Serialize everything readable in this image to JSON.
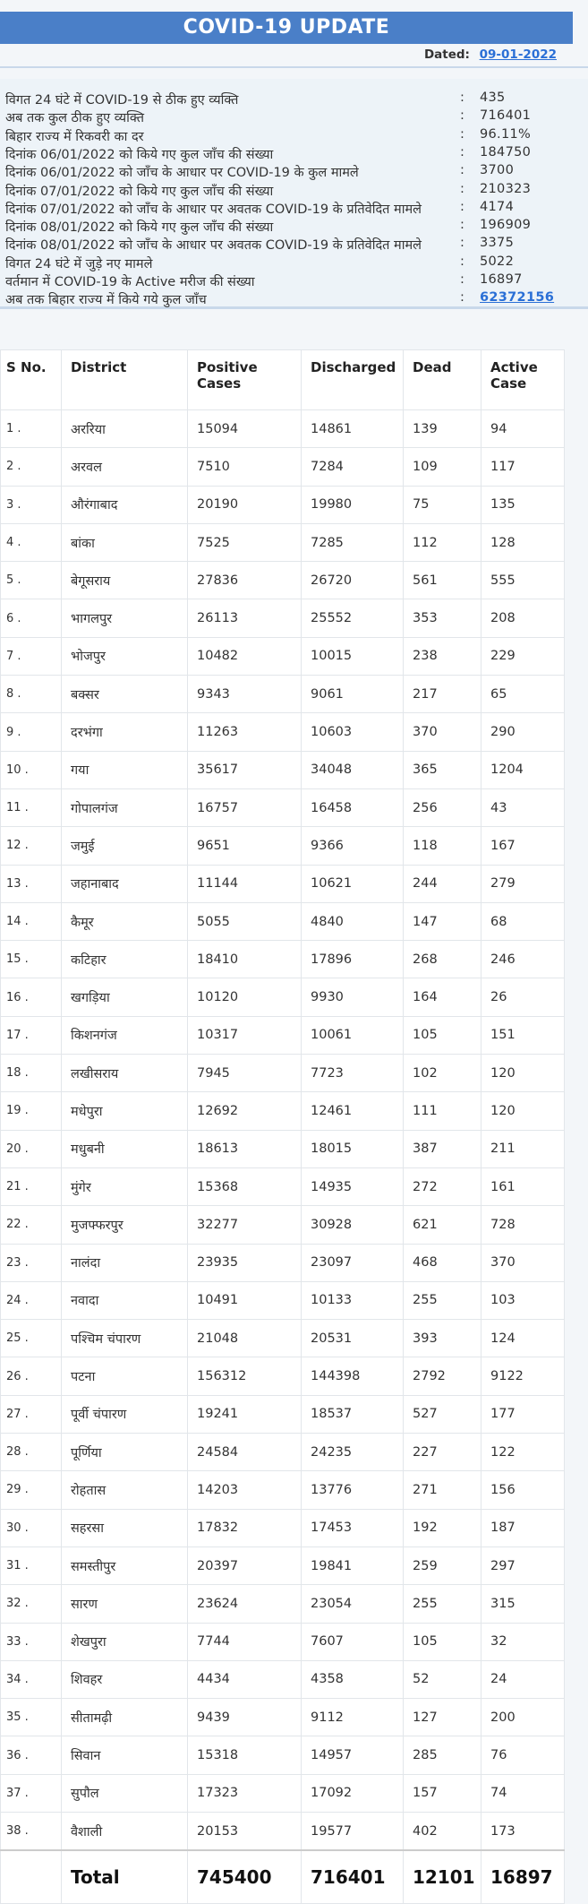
{
  "header": {
    "title": "COVID-19 UPDATE"
  },
  "dated": {
    "label": "Dated:",
    "value": "09-01-2022"
  },
  "summary": [
    {
      "label": "विगत 24 घंटे में COVID-19 से ठीक हुए व्यक्ति",
      "value": "435"
    },
    {
      "label": "अब तक कुल ठीक हुए व्यक्ति",
      "value": "716401"
    },
    {
      "label": "बिहार राज्य में रिकवरी का दर",
      "value": "96.11%"
    },
    {
      "label": "दिनांक 06/01/2022 को किये गए कुल जाँच की संख्या",
      "value": "184750"
    },
    {
      "label": "दिनांक 06/01/2022 को जाँच के आधार पर COVID-19 के कुल मामले",
      "value": "3700"
    },
    {
      "label": "दिनांक 07/01/2022 को किये गए कुल जाँच की संख्या",
      "value": "210323"
    },
    {
      "label": "दिनांक 07/01/2022 को जाँच के आधार पर अवतक COVID-19 के प्रतिवेदित मामले",
      "value": "4174"
    },
    {
      "label": "दिनांक 08/01/2022 को किये गए कुल जाँच की संख्या",
      "value": "196909"
    },
    {
      "label": "दिनांक 08/01/2022 को जाँच के आधार पर अवतक COVID-19 के प्रतिवेदित मामले",
      "value": "3375"
    },
    {
      "label": "विगत 24 घंटे में जुड़े नए मामले",
      "value": "5022"
    },
    {
      "label": "वर्तमान में COVID-19 के Active मरीज की संख्या",
      "value": "16897"
    },
    {
      "label": "अब तक बिहार राज्य में किये गये कुल जाँच",
      "value": "62372156",
      "link": true
    }
  ],
  "table": {
    "headers": [
      "S No.",
      "District",
      "Positive Cases",
      "Discharged",
      "Dead",
      "Active Case"
    ],
    "rows": [
      [
        "1 .",
        "अररिया",
        "15094",
        "14861",
        "139",
        "94"
      ],
      [
        "2 .",
        "अरवल",
        "7510",
        "7284",
        "109",
        "117"
      ],
      [
        "3 .",
        "औरंगाबाद",
        "20190",
        "19980",
        "75",
        "135"
      ],
      [
        "4 .",
        "बांका",
        "7525",
        "7285",
        "112",
        "128"
      ],
      [
        "5 .",
        "बेगूसराय",
        "27836",
        "26720",
        "561",
        "555"
      ],
      [
        "6 .",
        "भागलपुर",
        "26113",
        "25552",
        "353",
        "208"
      ],
      [
        "7 .",
        "भोजपुर",
        "10482",
        "10015",
        "238",
        "229"
      ],
      [
        "8 .",
        "बक्सर",
        "9343",
        "9061",
        "217",
        "65"
      ],
      [
        "9 .",
        "दरभंगा",
        "11263",
        "10603",
        "370",
        "290"
      ],
      [
        "10 .",
        "गया",
        "35617",
        "34048",
        "365",
        "1204"
      ],
      [
        "11 .",
        "गोपालगंज",
        "16757",
        "16458",
        "256",
        "43"
      ],
      [
        "12 .",
        "जमुई",
        "9651",
        "9366",
        "118",
        "167"
      ],
      [
        "13 .",
        "जहानाबाद",
        "11144",
        "10621",
        "244",
        "279"
      ],
      [
        "14 .",
        "कैमूर",
        "5055",
        "4840",
        "147",
        "68"
      ],
      [
        "15 .",
        "कटिहार",
        "18410",
        "17896",
        "268",
        "246"
      ],
      [
        "16 .",
        "खगड़िया",
        "10120",
        "9930",
        "164",
        "26"
      ],
      [
        "17 .",
        "किशनगंज",
        "10317",
        "10061",
        "105",
        "151"
      ],
      [
        "18 .",
        "लखीसराय",
        "7945",
        "7723",
        "102",
        "120"
      ],
      [
        "19 .",
        "मधेपुरा",
        "12692",
        "12461",
        "111",
        "120"
      ],
      [
        "20 .",
        "मधुबनी",
        "18613",
        "18015",
        "387",
        "211"
      ],
      [
        "21 .",
        "मुंगेर",
        "15368",
        "14935",
        "272",
        "161"
      ],
      [
        "22 .",
        "मुजफ्फरपुर",
        "32277",
        "30928",
        "621",
        "728"
      ],
      [
        "23 .",
        "नालंदा",
        "23935",
        "23097",
        "468",
        "370"
      ],
      [
        "24 .",
        "नवादा",
        "10491",
        "10133",
        "255",
        "103"
      ],
      [
        "25 .",
        "पश्चिम चंपारण",
        "21048",
        "20531",
        "393",
        "124"
      ],
      [
        "26 .",
        "पटना",
        "156312",
        "144398",
        "2792",
        "9122"
      ],
      [
        "27 .",
        "पूर्वी चंपारण",
        "19241",
        "18537",
        "527",
        "177"
      ],
      [
        "28 .",
        "पूर्णिया",
        "24584",
        "24235",
        "227",
        "122"
      ],
      [
        "29 .",
        "रोहतास",
        "14203",
        "13776",
        "271",
        "156"
      ],
      [
        "30 .",
        "सहरसा",
        "17832",
        "17453",
        "192",
        "187"
      ],
      [
        "31 .",
        "समस्तीपुर",
        "20397",
        "19841",
        "259",
        "297"
      ],
      [
        "32 .",
        "सारण",
        "23624",
        "23054",
        "255",
        "315"
      ],
      [
        "33 .",
        "शेखपुरा",
        "7744",
        "7607",
        "105",
        "32"
      ],
      [
        "34 .",
        "शिवहर",
        "4434",
        "4358",
        "52",
        "24"
      ],
      [
        "35 .",
        "सीतामढ़ी",
        "9439",
        "9112",
        "127",
        "200"
      ],
      [
        "36 .",
        "सिवान",
        "15318",
        "14957",
        "285",
        "76"
      ],
      [
        "37 .",
        "सुपौल",
        "17323",
        "17092",
        "157",
        "74"
      ],
      [
        "38 .",
        "वैशाली",
        "20153",
        "19577",
        "402",
        "173"
      ]
    ],
    "total": [
      "",
      "Total",
      "745400",
      "716401",
      "12101",
      "16897"
    ]
  }
}
